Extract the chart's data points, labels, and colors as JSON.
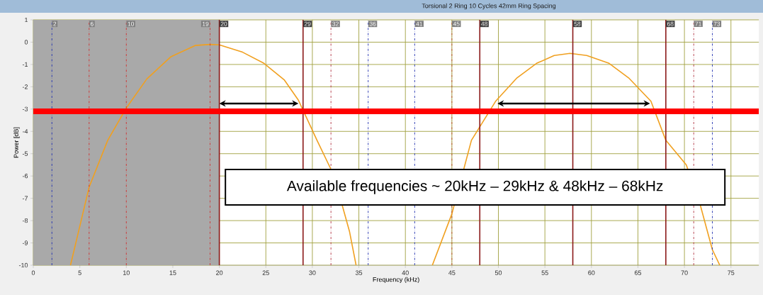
{
  "chart_data": {
    "type": "line",
    "title": "Torsional 2 Ring 10 Cycles 42mm Ring Spacing",
    "xlabel": "Frequency (kHz)",
    "ylabel": "Power [dB]",
    "x": [
      4,
      6,
      8,
      10,
      12.2,
      14.8,
      17.4,
      19,
      20,
      22.5,
      24.8,
      27,
      28.5,
      30.5,
      32,
      33.2,
      34,
      34.7,
      38.8,
      42.9,
      45,
      47.1,
      49.7,
      52,
      54.1,
      56,
      57.7,
      59.5,
      61.9,
      64,
      66.4,
      68,
      70.2,
      71.7,
      73,
      73.8
    ],
    "values": [
      -10,
      -6.5,
      -4.4,
      -2.95,
      -1.65,
      -0.65,
      -0.15,
      -0.1,
      -0.12,
      -0.45,
      -0.95,
      -1.7,
      -2.6,
      -4.4,
      -5.7,
      -7.3,
      -8.5,
      -10,
      null,
      -10,
      -7.7,
      -4.4,
      -2.65,
      -1.6,
      -0.95,
      -0.6,
      -0.5,
      -0.6,
      -0.95,
      -1.6,
      -2.65,
      -4.4,
      -5.5,
      -7.3,
      -9.3,
      -10
    ],
    "color": "#f0a020",
    "xlim": [
      0,
      78
    ],
    "ylim": [
      -10,
      1
    ],
    "xticks": [
      0,
      5,
      10,
      15,
      20,
      25,
      30,
      35,
      40,
      45,
      50,
      55,
      60,
      65,
      70,
      75
    ],
    "yticks": [
      -10,
      -9,
      -8,
      -7,
      -6,
      -5,
      -4,
      -3,
      -2,
      -1,
      0,
      1
    ],
    "grid": true,
    "bands": [
      {
        "axis": "x",
        "from": 0,
        "to": 20,
        "color": "#a9a9a9"
      }
    ],
    "ref_lines": [
      {
        "axis": "x",
        "value": 2,
        "label": "2",
        "color": "#2030b0",
        "line_style": "dashed"
      },
      {
        "axis": "x",
        "value": 6,
        "label": "6",
        "color": "#d03030",
        "line_style": "dashed"
      },
      {
        "axis": "x",
        "value": 10,
        "label": "10",
        "color": "#d03030",
        "line_style": "dashed"
      },
      {
        "axis": "x",
        "value": 19,
        "label": "19",
        "color": "#d03030",
        "line_style": "dashed"
      },
      {
        "axis": "x",
        "value": 20,
        "label": "20",
        "color": "#8b1a1a",
        "line_style": "solid"
      },
      {
        "axis": "x",
        "value": 29,
        "label": "29",
        "color": "#8b1a1a",
        "line_style": "solid"
      },
      {
        "axis": "x",
        "value": 32,
        "label": "32",
        "color": "#b03040",
        "line_style": "dashed"
      },
      {
        "axis": "x",
        "value": 36,
        "label": "36",
        "color": "#2030b0",
        "line_style": "dashed"
      },
      {
        "axis": "x",
        "value": 41,
        "label": "41",
        "color": "#2030b0",
        "line_style": "dashed"
      },
      {
        "axis": "x",
        "value": 45,
        "label": "45",
        "color": "#c05030",
        "line_style": "dashed"
      },
      {
        "axis": "x",
        "value": 48,
        "label": "48",
        "color": "#8b1a1a",
        "line_style": "solid"
      },
      {
        "axis": "x",
        "value": 58,
        "label": "58",
        "color": "#8b1a1a",
        "line_style": "solid"
      },
      {
        "axis": "x",
        "value": 68,
        "label": "68",
        "color": "#8b1a1a",
        "line_style": "solid"
      },
      {
        "axis": "x",
        "value": 71,
        "label": "71",
        "color": "#b03040",
        "line_style": "dashed"
      },
      {
        "axis": "x",
        "value": 73,
        "label": "73",
        "color": "#2030b0",
        "line_style": "dashed"
      },
      {
        "axis": "y",
        "value": -3.1,
        "color": "#ff0000",
        "line_style": "solid"
      }
    ],
    "annotations": [
      "Available frequencies ~ 20kHz – 29kHz & 48kHz – 68kHz"
    ]
  }
}
